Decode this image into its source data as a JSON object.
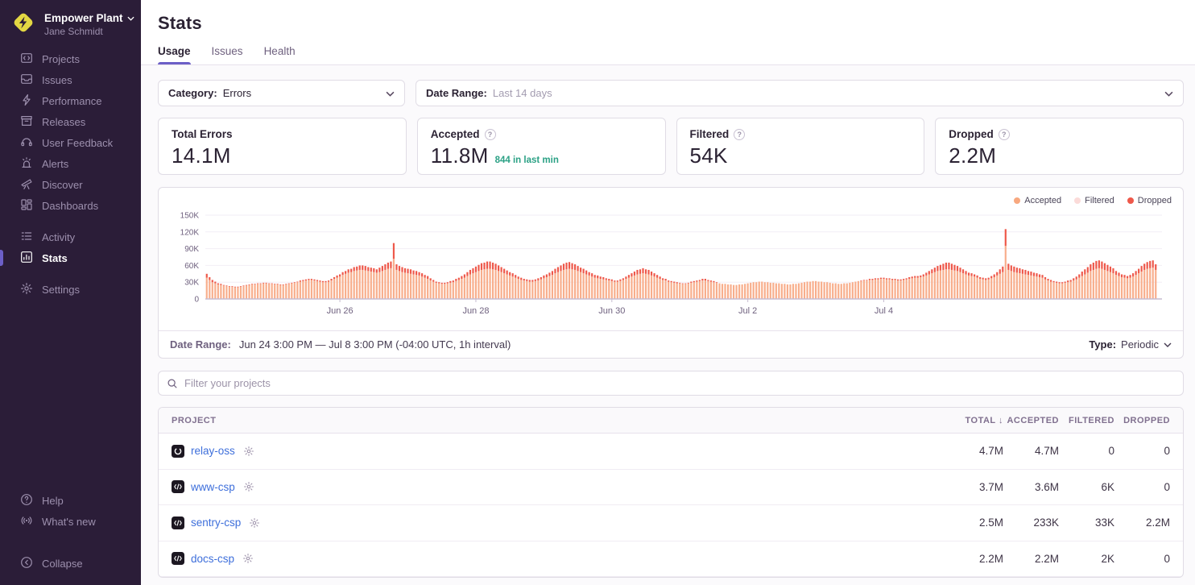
{
  "sidebar": {
    "org_name": "Empower Plant",
    "user_name": "Jane Schmidt",
    "sections": [
      {
        "items": [
          {
            "id": "projects",
            "label": "Projects"
          },
          {
            "id": "issues",
            "label": "Issues"
          },
          {
            "id": "performance",
            "label": "Performance"
          },
          {
            "id": "releases",
            "label": "Releases"
          },
          {
            "id": "user-feedback",
            "label": "User Feedback"
          },
          {
            "id": "alerts",
            "label": "Alerts"
          },
          {
            "id": "discover",
            "label": "Discover"
          },
          {
            "id": "dashboards",
            "label": "Dashboards"
          }
        ]
      },
      {
        "items": [
          {
            "id": "activity",
            "label": "Activity"
          },
          {
            "id": "stats",
            "label": "Stats",
            "active": true
          }
        ]
      },
      {
        "items": [
          {
            "id": "settings",
            "label": "Settings"
          }
        ]
      }
    ],
    "footer_items": [
      {
        "id": "help",
        "label": "Help"
      },
      {
        "id": "whats-new",
        "label": "What's new"
      }
    ],
    "collapse_label": "Collapse"
  },
  "header": {
    "title": "Stats",
    "tabs": [
      {
        "label": "Usage",
        "active": true
      },
      {
        "label": "Issues",
        "active": false
      },
      {
        "label": "Health",
        "active": false
      }
    ]
  },
  "filters": {
    "category_label": "Category:",
    "category_value": "Errors",
    "date_range_label": "Date Range:",
    "date_range_value": "Last 14 days"
  },
  "cards": [
    {
      "label": "Total Errors",
      "value": "14.1M",
      "help": false,
      "sub": ""
    },
    {
      "label": "Accepted",
      "value": "11.8M",
      "help": true,
      "sub": "844 in last min"
    },
    {
      "label": "Filtered",
      "value": "54K",
      "help": true,
      "sub": ""
    },
    {
      "label": "Dropped",
      "value": "2.2M",
      "help": true,
      "sub": ""
    }
  ],
  "chart_data": {
    "type": "bar",
    "stacked": true,
    "title": "",
    "xlabel": "",
    "ylabel": "",
    "x_range_note": "Jun 24 3:00 PM to Jul 8 3:00 PM, 1 bar per hour (336 bars)",
    "x_tick_labels": [
      "Jun 26",
      "Jun 28",
      "Jun 30",
      "Jul 2",
      "Jul 4"
    ],
    "x_tick_indices": [
      47,
      95,
      143,
      191,
      239
    ],
    "ylim": [
      0,
      150000
    ],
    "y_tick_labels": [
      "0",
      "30K",
      "60K",
      "90K",
      "120K",
      "150K"
    ],
    "grid": true,
    "legend_position": "top-right",
    "legend": [
      {
        "label": "Accepted",
        "color": "#F8A87F"
      },
      {
        "label": "Filtered",
        "color": "#FBDBD9"
      },
      {
        "label": "Dropped",
        "color": "#EE584A"
      }
    ],
    "values_unit": "thousands of events per hour (estimated)",
    "series": [
      {
        "name": "Accepted",
        "color": "#F8AE8C",
        "values": [
          38,
          34,
          30,
          28,
          26,
          25,
          24,
          23,
          22,
          22,
          21,
          21,
          22,
          23,
          24,
          25,
          26,
          26,
          27,
          27,
          28,
          28,
          27,
          27,
          26,
          26,
          25,
          25,
          26,
          27,
          28,
          29,
          30,
          31,
          32,
          33,
          34,
          34,
          33,
          32,
          31,
          30,
          30,
          31,
          33,
          36,
          38,
          40,
          43,
          45,
          47,
          48,
          50,
          51,
          52,
          52,
          51,
          50,
          49,
          48,
          47,
          48,
          50,
          52,
          54,
          55,
          72,
          52,
          50,
          48,
          47,
          46,
          45,
          44,
          43,
          42,
          40,
          38,
          36,
          33,
          31,
          29,
          28,
          27,
          27,
          28,
          29,
          30,
          32,
          34,
          36,
          38,
          41,
          44,
          46,
          48,
          50,
          52,
          53,
          54,
          54,
          53,
          52,
          50,
          48,
          46,
          44,
          42,
          40,
          38,
          36,
          34,
          33,
          32,
          31,
          31,
          32,
          33,
          35,
          37,
          39,
          41,
          43,
          46,
          48,
          50,
          52,
          53,
          54,
          53,
          52,
          50,
          48,
          46,
          44,
          42,
          40,
          38,
          37,
          36,
          35,
          34,
          33,
          32,
          31,
          31,
          32,
          34,
          36,
          38,
          40,
          42,
          44,
          45,
          46,
          45,
          44,
          42,
          40,
          38,
          36,
          34,
          33,
          31,
          30,
          29,
          28,
          28,
          27,
          27,
          28,
          29,
          30,
          31,
          32,
          33,
          33,
          32,
          31,
          30,
          29,
          28,
          27,
          27,
          26,
          26,
          25,
          25,
          26,
          26,
          27,
          28,
          29,
          30,
          30,
          31,
          31,
          30,
          30,
          29,
          29,
          28,
          28,
          27,
          27,
          26,
          26,
          27,
          27,
          28,
          29,
          30,
          31,
          31,
          32,
          32,
          31,
          31,
          30,
          30,
          29,
          28,
          28,
          27,
          27,
          28,
          28,
          29,
          30,
          31,
          32,
          32,
          33,
          33,
          34,
          34,
          35,
          35,
          36,
          36,
          35,
          35,
          34,
          34,
          33,
          33,
          34,
          35,
          36,
          37,
          38,
          38,
          39,
          40,
          42,
          44,
          46,
          48,
          50,
          51,
          52,
          53,
          53,
          52,
          51,
          50,
          48,
          46,
          44,
          42,
          41,
          40,
          38,
          36,
          35,
          34,
          35,
          37,
          39,
          42,
          45,
          48,
          95,
          52,
          50,
          48,
          47,
          46,
          45,
          44,
          43,
          42,
          41,
          40,
          39,
          38,
          35,
          33,
          31,
          30,
          29,
          28,
          28,
          29,
          30,
          31,
          33,
          35,
          38,
          41,
          44,
          47,
          50,
          52,
          54,
          55,
          54,
          52,
          50,
          48,
          46,
          43,
          41,
          39,
          38,
          37,
          38,
          40,
          43,
          46,
          49,
          52,
          54,
          55,
          56,
          52
        ]
      },
      {
        "name": "Dropped",
        "color": "#EE584A",
        "values": [
          7,
          5,
          4,
          3,
          2,
          2,
          1,
          1,
          1,
          1,
          1,
          1,
          1,
          1,
          1,
          1,
          1,
          1,
          1,
          1,
          1,
          1,
          1,
          1,
          1,
          1,
          1,
          1,
          1,
          1,
          1,
          1,
          1,
          2,
          2,
          2,
          2,
          2,
          2,
          2,
          2,
          2,
          2,
          2,
          3,
          3,
          4,
          4,
          5,
          5,
          6,
          6,
          7,
          7,
          8,
          8,
          8,
          7,
          7,
          7,
          6,
          8,
          9,
          10,
          11,
          12,
          28,
          10,
          9,
          9,
          8,
          8,
          8,
          7,
          7,
          6,
          6,
          5,
          5,
          4,
          3,
          2,
          2,
          2,
          2,
          2,
          3,
          3,
          4,
          4,
          5,
          6,
          7,
          8,
          9,
          10,
          11,
          12,
          12,
          13,
          13,
          12,
          11,
          10,
          9,
          8,
          7,
          6,
          6,
          5,
          4,
          4,
          3,
          3,
          3,
          3,
          3,
          4,
          4,
          5,
          5,
          6,
          7,
          8,
          9,
          10,
          11,
          12,
          12,
          11,
          10,
          9,
          8,
          8,
          7,
          6,
          6,
          5,
          5,
          4,
          4,
          3,
          3,
          3,
          2,
          2,
          3,
          3,
          4,
          5,
          6,
          7,
          8,
          8,
          9,
          8,
          8,
          7,
          6,
          5,
          4,
          3,
          3,
          2,
          2,
          2,
          2,
          1,
          1,
          1,
          1,
          2,
          2,
          2,
          2,
          3,
          3,
          2,
          2,
          2,
          1,
          0,
          0,
          0,
          0,
          0,
          0,
          0,
          0,
          0,
          0,
          0,
          0,
          0,
          0,
          0,
          0,
          0,
          0,
          0,
          0,
          0,
          0,
          0,
          0,
          0,
          0,
          0,
          0,
          0,
          0,
          0,
          0,
          0,
          0,
          0,
          0,
          0,
          0,
          0,
          0,
          0,
          0,
          0,
          0,
          0,
          0,
          0,
          0,
          0,
          0,
          1,
          1,
          1,
          2,
          2,
          2,
          2,
          2,
          2,
          2,
          2,
          2,
          2,
          2,
          2,
          2,
          2,
          3,
          3,
          3,
          3,
          3,
          4,
          5,
          6,
          7,
          8,
          9,
          10,
          11,
          12,
          12,
          11,
          10,
          9,
          8,
          7,
          6,
          5,
          5,
          4,
          4,
          3,
          3,
          3,
          3,
          4,
          5,
          6,
          8,
          10,
          30,
          11,
          10,
          10,
          9,
          9,
          8,
          8,
          7,
          7,
          6,
          6,
          5,
          5,
          4,
          3,
          3,
          2,
          2,
          2,
          2,
          2,
          3,
          3,
          4,
          5,
          6,
          8,
          9,
          10,
          12,
          13,
          14,
          14,
          13,
          12,
          11,
          10,
          9,
          7,
          6,
          5,
          5,
          4,
          5,
          6,
          7,
          8,
          10,
          11,
          12,
          13,
          13,
          10
        ]
      }
    ]
  },
  "chart_footer": {
    "label": "Date Range:",
    "value": "Jun 24 3:00 PM — Jul 8 3:00 PM (-04:00 UTC, 1h interval)",
    "type_label": "Type:",
    "type_value": "Periodic"
  },
  "search": {
    "placeholder": "Filter your projects"
  },
  "table": {
    "columns": [
      "PROJECT",
      "TOTAL",
      "ACCEPTED",
      "FILTERED",
      "DROPPED"
    ],
    "sorted_column": "TOTAL",
    "sort_direction": "desc",
    "rows": [
      {
        "project": "relay-oss",
        "icon": "relay",
        "total": "4.7M",
        "accepted": "4.7M",
        "filtered": "0",
        "dropped": "0"
      },
      {
        "project": "www-csp",
        "icon": "csp",
        "total": "3.7M",
        "accepted": "3.6M",
        "filtered": "6K",
        "dropped": "0"
      },
      {
        "project": "sentry-csp",
        "icon": "csp",
        "total": "2.5M",
        "accepted": "233K",
        "filtered": "33K",
        "dropped": "2.2M"
      },
      {
        "project": "docs-csp",
        "icon": "csp",
        "total": "2.2M",
        "accepted": "2.2M",
        "filtered": "2K",
        "dropped": "0"
      }
    ]
  },
  "colors": {
    "accent": "#6C5FC7",
    "sidebar_bg": "#2b1d38",
    "link": "#3E6FDB",
    "success": "#2BA185",
    "accepted_bar": "#F8AE8C",
    "dropped_bar": "#EE584A"
  }
}
